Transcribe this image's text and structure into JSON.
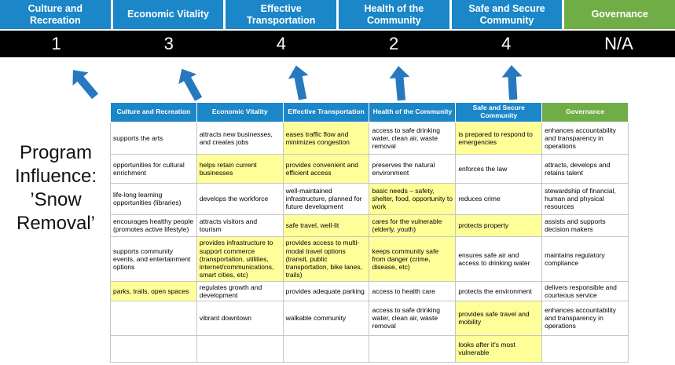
{
  "colors": {
    "blue": "#1b86c8",
    "green": "#70ad47",
    "yellow": "#ffff99",
    "scorebg": "#000000",
    "arrow": "#2878c0",
    "tborder": "#c6c6c6"
  },
  "title": "Program Influence: ’Snow Removal’",
  "summary_columns": [
    {
      "label": "Culture and Recreation",
      "score": "1",
      "theme": "blue"
    },
    {
      "label": "Economic Vitality",
      "score": "3",
      "theme": "blue"
    },
    {
      "label": "Effective Transportation",
      "score": "4",
      "theme": "blue"
    },
    {
      "label": "Health of the Community",
      "score": "2",
      "theme": "blue"
    },
    {
      "label": "Safe and Secure Community",
      "score": "4",
      "theme": "blue"
    },
    {
      "label": "Governance",
      "score": "N/A",
      "theme": "green"
    }
  ],
  "matrix": {
    "headers": [
      {
        "label": "Culture and Recreation",
        "theme": "blue"
      },
      {
        "label": "Economic Vitality",
        "theme": "blue"
      },
      {
        "label": "Effective Transportation",
        "theme": "blue"
      },
      {
        "label": "Health of the Community",
        "theme": "blue"
      },
      {
        "label": "Safe and Secure Community",
        "theme": "blue"
      },
      {
        "label": "Governance",
        "theme": "green"
      }
    ],
    "rows": [
      [
        {
          "text": "supports the arts",
          "hl": false
        },
        {
          "text": "attracts new businesses, and creates jobs",
          "hl": false
        },
        {
          "text": "eases traffic flow and minimizes congestion",
          "hl": true
        },
        {
          "text": "access to safe drinking water, clean air, waste removal",
          "hl": false
        },
        {
          "text": "is prepared to respond to emergencies",
          "hl": true
        },
        {
          "text": "enhances accountability and transparency in operations",
          "hl": false
        }
      ],
      [
        {
          "text": "opportunities for cultural enrichment",
          "hl": false
        },
        {
          "text": "helps retain current businesses",
          "hl": true
        },
        {
          "text": "provides convenient and efficient access",
          "hl": true
        },
        {
          "text": "preserves the natural environment",
          "hl": false
        },
        {
          "text": "enforces the law",
          "hl": false
        },
        {
          "text": "attracts, develops and retains talent",
          "hl": false
        }
      ],
      [
        {
          "text": "life-long learning opportunities (libraries)",
          "hl": false
        },
        {
          "text": "develops the workforce",
          "hl": false
        },
        {
          "text": "well-maintained infrastructure, planned for future development",
          "hl": false
        },
        {
          "text": "basic needs – safety, shelter, food, opportunity to work",
          "hl": true
        },
        {
          "text": "reduces crime",
          "hl": false
        },
        {
          "text": "stewardship of financial, human and physical resources",
          "hl": false
        }
      ],
      [
        {
          "text": "encourages healthy people (promotes active lifestyle)",
          "hl": false
        },
        {
          "text": "attracts visitors and tourism",
          "hl": false
        },
        {
          "text": "safe travel, well-lit",
          "hl": true
        },
        {
          "text": "cares for the vulnerable (elderly, youth)",
          "hl": true
        },
        {
          "text": "protects property",
          "hl": true
        },
        {
          "text": "assists and supports decision makers",
          "hl": false
        }
      ],
      [
        {
          "text": "supports community events, and entertainment options",
          "hl": false
        },
        {
          "text": "provides infrastructure to support commerce (transportation, utilities, internet/communications, smart cities, etc)",
          "hl": true
        },
        {
          "text": "provides access to multi-modal travel options (transit, public transportation, bike lanes, trails)",
          "hl": true
        },
        {
          "text": "keeps community safe from danger (crime, disease, etc)",
          "hl": true
        },
        {
          "text": "ensures safe air and access to drinking water",
          "hl": false
        },
        {
          "text": "maintains regulatory compliance",
          "hl": false
        }
      ],
      [
        {
          "text": "parks, trails, open spaces",
          "hl": true
        },
        {
          "text": "regulates growth and development",
          "hl": false
        },
        {
          "text": "provides adequate parking",
          "hl": false
        },
        {
          "text": "access to health care",
          "hl": false
        },
        {
          "text": "protects the environment",
          "hl": false
        },
        {
          "text": "delivers responsible and courteous service",
          "hl": false
        }
      ],
      [
        {
          "text": "",
          "hl": false
        },
        {
          "text": "vibrant downtown",
          "hl": false
        },
        {
          "text": "walkable community",
          "hl": false
        },
        {
          "text": "access to safe drinking water, clean air, waste removal",
          "hl": false
        },
        {
          "text": "provides safe travel and mobility",
          "hl": true
        },
        {
          "text": "enhances accountability and transparency in operations",
          "hl": false
        }
      ],
      [
        {
          "text": "",
          "hl": false
        },
        {
          "text": "",
          "hl": false
        },
        {
          "text": "",
          "hl": false
        },
        {
          "text": "",
          "hl": false
        },
        {
          "text": "looks after it's most vulnerable",
          "hl": true
        },
        {
          "text": "",
          "hl": false
        }
      ]
    ]
  }
}
